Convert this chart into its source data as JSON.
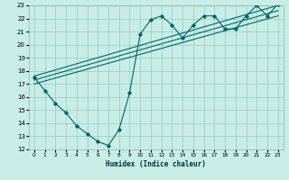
{
  "xlabel": "Humidex (Indice chaleur)",
  "bg_color": "#c8ece6",
  "grid_color": "#99ccbb",
  "line_color": "#006666",
  "xlim": [
    -0.5,
    23.5
  ],
  "ylim": [
    12,
    23
  ],
  "xticks": [
    0,
    1,
    2,
    3,
    4,
    5,
    6,
    7,
    8,
    9,
    10,
    11,
    12,
    13,
    14,
    15,
    16,
    17,
    18,
    19,
    20,
    21,
    22,
    23
  ],
  "yticks": [
    12,
    13,
    14,
    15,
    16,
    17,
    18,
    19,
    20,
    21,
    22,
    23
  ],
  "data_x": [
    0,
    1,
    2,
    3,
    4,
    5,
    6,
    7,
    8,
    9,
    10,
    11,
    12,
    13,
    14,
    15,
    16,
    17,
    18,
    19,
    20,
    21,
    22,
    23
  ],
  "data_y": [
    17.5,
    16.5,
    15.5,
    14.8,
    13.8,
    13.2,
    12.6,
    12.3,
    13.5,
    16.3,
    20.8,
    21.9,
    22.2,
    21.5,
    20.5,
    21.5,
    22.2,
    22.2,
    21.2,
    21.2,
    22.2,
    23.0,
    22.2,
    23.1
  ],
  "line1_x": [
    0,
    23
  ],
  "line1_y": [
    17.0,
    22.2
  ],
  "line2_x": [
    0,
    23
  ],
  "line2_y": [
    17.3,
    22.6
  ],
  "line3_x": [
    0,
    23
  ],
  "line3_y": [
    17.6,
    23.0
  ]
}
